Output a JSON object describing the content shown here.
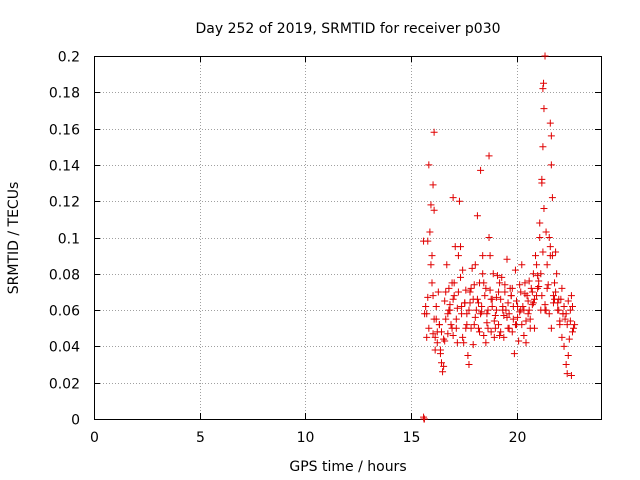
{
  "chart_data": {
    "type": "scatter",
    "title": "Day 252 of 2019, SRMTID for receiver p030",
    "xlabel": "GPS time / hours",
    "ylabel": "SRMTID / TECUs",
    "xlim": [
      0,
      24
    ],
    "ylim": [
      0,
      0.2
    ],
    "xticks": [
      0,
      5,
      10,
      15,
      20
    ],
    "xtick_labels": [
      "0",
      "5",
      "10",
      "15",
      "20"
    ],
    "yticks": [
      0,
      0.02,
      0.04,
      0.06,
      0.08,
      0.1,
      0.12,
      0.14,
      0.16,
      0.18,
      0.2
    ],
    "ytick_labels": [
      "0",
      "0.02",
      "0.04",
      "0.06",
      "0.08",
      "0.1",
      "0.12",
      "0.14",
      "0.16",
      "0.18",
      "0.2"
    ],
    "grid": true,
    "marker": "+",
    "series": [
      {
        "name": "SRMTID",
        "color": "#e00000",
        "x": [
          15.6,
          15.65,
          15.7,
          15.75,
          15.8,
          15.85,
          15.9,
          15.95,
          16.0,
          16.05,
          16.1,
          16.15,
          16.2,
          16.25,
          16.3,
          16.35,
          16.4,
          16.45,
          16.5,
          16.55,
          16.6,
          16.65,
          16.7,
          16.75,
          16.8,
          16.85,
          16.9,
          16.95,
          17.0,
          17.05,
          17.1,
          17.15,
          17.2,
          17.25,
          17.3,
          17.35,
          17.4,
          17.45,
          17.5,
          17.55,
          17.6,
          17.65,
          17.7,
          17.75,
          17.8,
          17.85,
          17.9,
          17.95,
          18.0,
          18.05,
          18.1,
          18.15,
          18.2,
          18.25,
          18.3,
          18.35,
          18.4,
          18.45,
          18.5,
          18.55,
          18.6,
          18.65,
          18.7,
          18.75,
          18.8,
          18.85,
          18.9,
          18.95,
          19.0,
          19.05,
          19.1,
          19.15,
          19.2,
          19.25,
          19.3,
          19.35,
          19.4,
          19.45,
          19.5,
          19.55,
          19.6,
          19.65,
          19.7,
          19.75,
          19.8,
          19.85,
          19.9,
          19.95,
          20.0,
          20.05,
          20.1,
          20.15,
          20.2,
          20.25,
          20.3,
          20.35,
          20.4,
          20.45,
          20.5,
          20.55,
          20.6,
          20.65,
          20.7,
          20.75,
          20.8,
          20.85,
          20.9,
          20.95,
          21.0,
          21.05,
          21.1,
          21.15,
          21.2,
          21.25,
          21.3,
          21.35,
          21.4,
          21.45,
          21.5,
          21.55,
          21.6,
          21.65,
          21.7,
          21.75,
          21.8,
          21.85,
          21.9,
          21.95,
          22.0,
          22.05,
          22.1,
          22.15,
          22.2,
          22.25,
          22.3,
          22.35,
          22.4,
          22.45,
          22.5,
          22.55,
          22.6,
          22.65,
          22.7,
          22.75,
          15.75,
          15.85,
          15.95,
          16.05,
          16.15,
          16.25,
          16.35,
          16.45,
          16.55,
          16.65,
          16.75,
          16.85,
          16.95,
          17.05,
          17.15,
          17.25,
          17.35,
          17.45,
          17.55,
          17.65,
          17.75,
          17.85,
          17.95,
          18.05,
          18.15,
          18.25,
          18.35,
          18.45,
          18.55,
          18.65,
          18.75,
          18.85,
          18.95,
          19.05,
          19.15,
          19.25,
          19.35,
          19.45,
          19.55,
          19.65,
          19.75,
          19.85,
          19.95,
          20.05,
          20.15,
          20.25,
          20.35,
          20.45,
          20.55,
          20.65,
          20.75,
          20.85,
          20.95,
          21.05,
          21.15,
          21.25,
          21.35,
          21.45,
          21.55,
          21.65,
          21.75,
          21.85,
          21.95,
          22.05,
          22.15,
          22.25,
          22.35,
          22.45,
          22.55,
          22.65,
          15.8,
          16.0,
          16.2,
          16.4,
          16.6,
          16.8,
          17.0,
          17.2,
          17.4,
          17.6,
          17.8,
          18.0,
          18.2,
          18.4,
          18.6,
          18.8,
          19.0,
          19.2,
          19.4,
          19.6,
          19.8,
          20.0,
          20.2,
          20.4,
          20.6,
          20.8,
          21.0,
          21.2,
          21.4,
          21.6,
          21.8,
          22.0,
          22.2,
          22.4,
          22.6,
          16.05,
          16.1,
          21.2,
          21.25,
          21.3,
          21.28,
          21.6,
          21.65,
          18.7,
          21.35,
          17.0,
          18.3,
          16.1,
          21.7,
          21.1,
          15.6,
          15.62,
          15.64
        ],
        "y": [
          0.098,
          0.058,
          0.062,
          0.045,
          0.098,
          0.14,
          0.103,
          0.118,
          0.09,
          0.068,
          0.055,
          0.045,
          0.062,
          0.048,
          0.07,
          0.052,
          0.036,
          0.031,
          0.026,
          0.044,
          0.065,
          0.07,
          0.085,
          0.058,
          0.072,
          0.06,
          0.052,
          0.05,
          0.046,
          0.075,
          0.095,
          0.05,
          0.061,
          0.07,
          0.12,
          0.095,
          0.062,
          0.082,
          0.042,
          0.064,
          0.071,
          0.058,
          0.035,
          0.03,
          0.064,
          0.05,
          0.083,
          0.066,
          0.074,
          0.085,
          0.06,
          0.112,
          0.05,
          0.075,
          0.058,
          0.062,
          0.09,
          0.046,
          0.068,
          0.072,
          0.053,
          0.06,
          0.1,
          0.071,
          0.048,
          0.062,
          0.08,
          0.045,
          0.057,
          0.067,
          0.079,
          0.052,
          0.075,
          0.066,
          0.078,
          0.06,
          0.045,
          0.07,
          0.06,
          0.088,
          0.05,
          0.058,
          0.072,
          0.068,
          0.048,
          0.055,
          0.036,
          0.052,
          0.065,
          0.062,
          0.043,
          0.059,
          0.07,
          0.085,
          0.062,
          0.046,
          0.075,
          0.054,
          0.068,
          0.058,
          0.06,
          0.05,
          0.072,
          0.063,
          0.08,
          0.066,
          0.09,
          0.085,
          0.079,
          0.073,
          0.1,
          0.06,
          0.132,
          0.15,
          0.116,
          0.063,
          0.103,
          0.085,
          0.074,
          0.1,
          0.095,
          0.14,
          0.09,
          0.068,
          0.066,
          0.092,
          0.08,
          0.064,
          0.06,
          0.054,
          0.066,
          0.072,
          0.058,
          0.04,
          0.055,
          0.03,
          0.025,
          0.035,
          0.044,
          0.06,
          0.068,
          0.062,
          0.05,
          0.052,
          0.058,
          0.05,
          0.085,
          0.047,
          0.038,
          0.042,
          0.052,
          0.048,
          0.029,
          0.055,
          0.047,
          0.063,
          0.075,
          0.068,
          0.055,
          0.09,
          0.078,
          0.045,
          0.064,
          0.052,
          0.06,
          0.072,
          0.041,
          0.056,
          0.066,
          0.048,
          0.059,
          0.075,
          0.042,
          0.05,
          0.09,
          0.066,
          0.054,
          0.06,
          0.07,
          0.048,
          0.062,
          0.074,
          0.056,
          0.05,
          0.068,
          0.062,
          0.082,
          0.056,
          0.074,
          0.052,
          0.06,
          0.042,
          0.065,
          0.055,
          0.07,
          0.05,
          0.068,
          0.076,
          0.08,
          0.092,
          0.06,
          0.072,
          0.058,
          0.05,
          0.064,
          0.07,
          0.06,
          0.052,
          0.045,
          0.062,
          0.058,
          0.065,
          0.054,
          0.048,
          0.067,
          0.075,
          0.055,
          0.038,
          0.043,
          0.06,
          0.066,
          0.042,
          0.058,
          0.05,
          0.07,
          0.052,
          0.064,
          0.08,
          0.058,
          0.066,
          0.05,
          0.046,
          0.057,
          0.064,
          0.072,
          0.052,
          0.06,
          0.069,
          0.076,
          0.064,
          0.072,
          0.068,
          0.06,
          0.09,
          0.075,
          0.066,
          0.058,
          0.052,
          0.024,
          0.129,
          0.158,
          0.13,
          0.182,
          0.171,
          0.185,
          0.163,
          0.156,
          0.145,
          0.2,
          0.122,
          0.137,
          0.115,
          0.122,
          0.108,
          0.001,
          0.0,
          0.0
        ]
      }
    ]
  }
}
